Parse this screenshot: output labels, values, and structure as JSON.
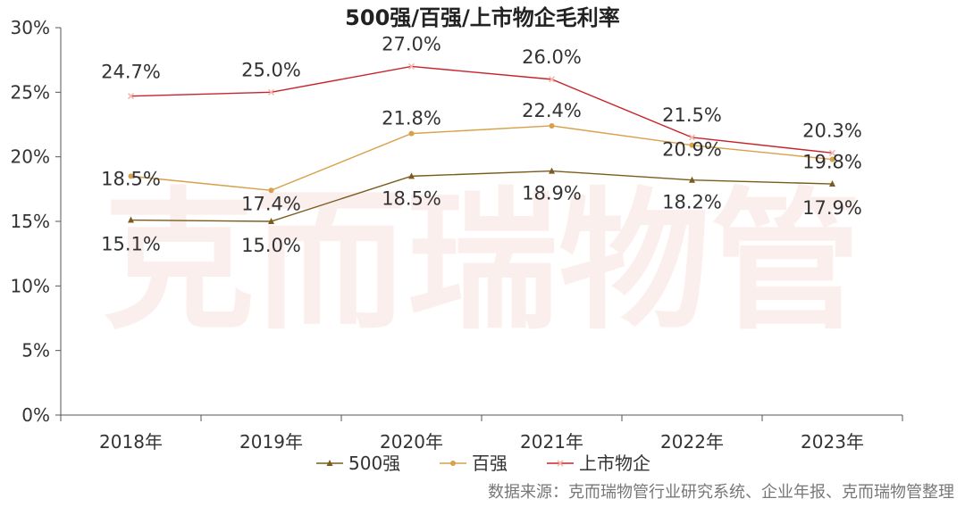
{
  "watermark": "克而瑞物管",
  "source": "数据来源：克而瑞物管行业研究系统、企业年报、克而瑞物管整理",
  "chart_data": {
    "type": "line",
    "title": "500强/百强/上市物企毛利率",
    "categories": [
      "2018年",
      "2019年",
      "2020年",
      "2021年",
      "2022年",
      "2023年"
    ],
    "ylim": [
      0,
      30
    ],
    "yticks": [
      0,
      5,
      10,
      15,
      20,
      25,
      30
    ],
    "ytick_labels": [
      "0%",
      "5%",
      "10%",
      "15%",
      "20%",
      "25%",
      "30%"
    ],
    "grid": false,
    "legend_position": "bottom",
    "series": [
      {
        "name": "500强",
        "values": [
          15.1,
          15.0,
          18.5,
          18.9,
          18.2,
          17.9
        ],
        "labels": [
          "15.1%",
          "15.0%",
          "18.5%",
          "18.9%",
          "18.2%",
          "17.9%"
        ],
        "color": "#7a5c1e",
        "marker": "triangle"
      },
      {
        "name": "百强",
        "values": [
          18.5,
          17.4,
          21.8,
          22.4,
          20.9,
          19.8
        ],
        "labels": [
          "18.5%",
          "17.4%",
          "21.8%",
          "22.4%",
          "20.9%",
          "19.8%"
        ],
        "color": "#d9a04a",
        "marker": "circle"
      },
      {
        "name": "上市物企",
        "values": [
          24.7,
          25.0,
          27.0,
          26.0,
          21.5,
          20.3
        ],
        "labels": [
          "24.7%",
          "25.0%",
          "27.0%",
          "26.0%",
          "21.5%",
          "20.3%"
        ],
        "color": "#c8232a",
        "marker": "x"
      }
    ]
  }
}
